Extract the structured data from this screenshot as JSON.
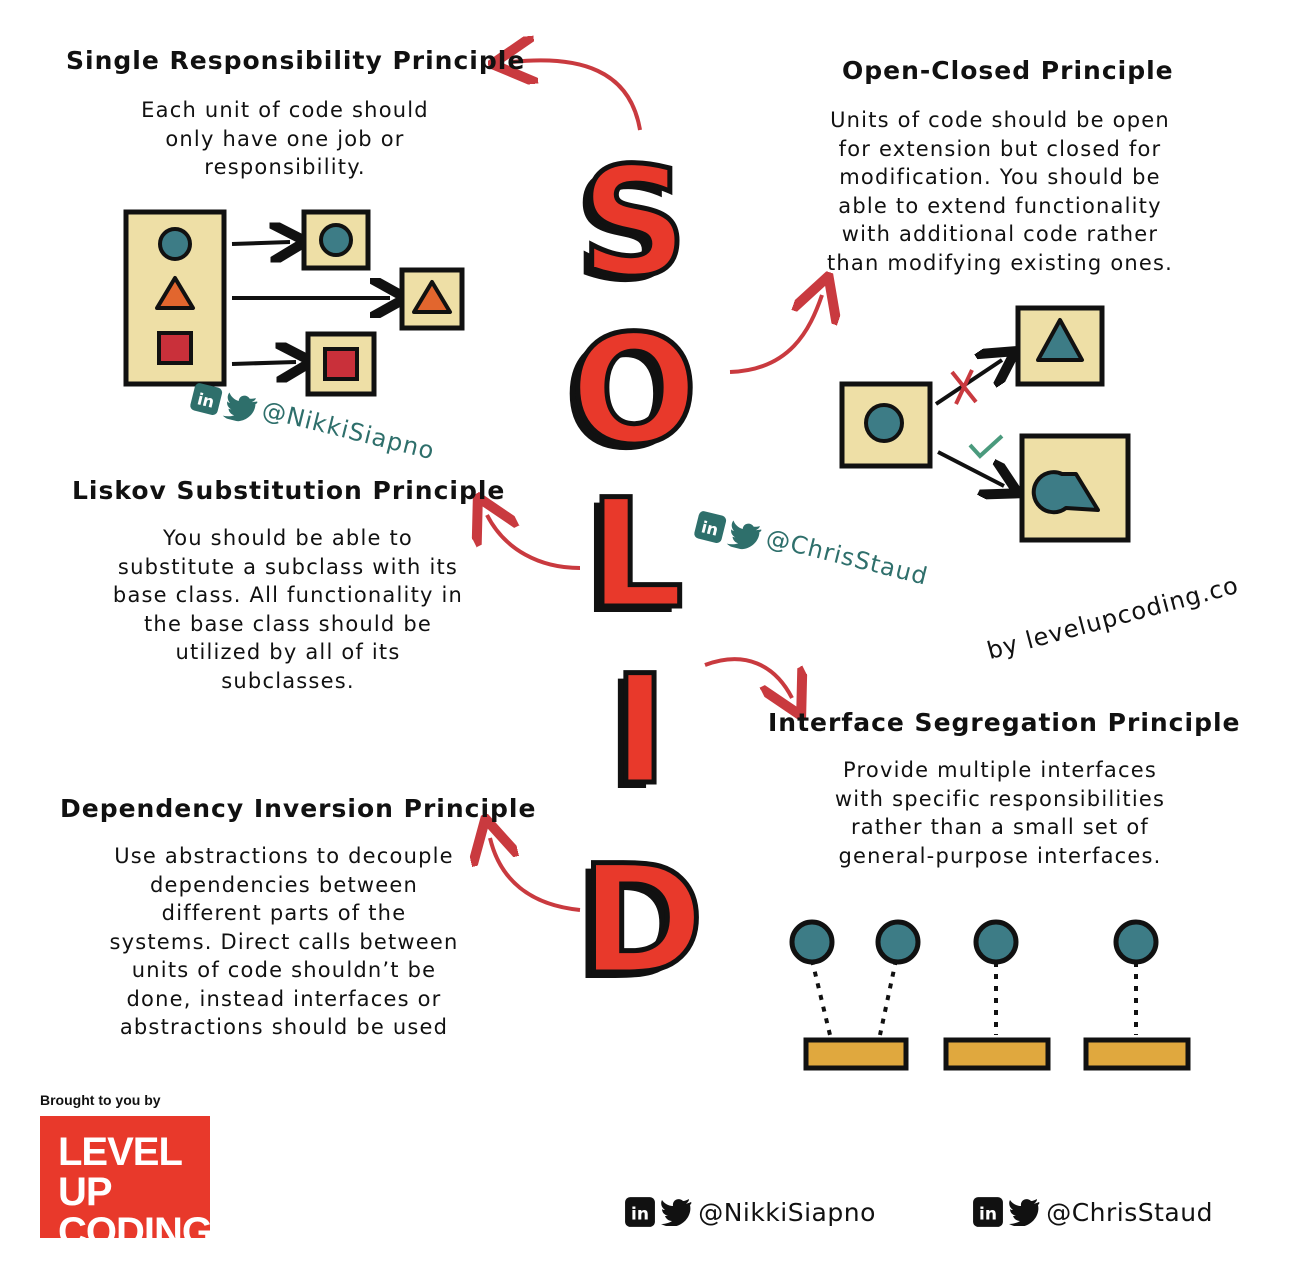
{
  "acronym": {
    "letters": [
      "S",
      "O",
      "L",
      "I",
      "D"
    ],
    "color": "#e8392b"
  },
  "principles": {
    "srp": {
      "title": "Single Responsibility Principle",
      "description": "Each unit of code should\nonly have one job or\nresponsibility."
    },
    "ocp": {
      "title": "Open-Closed Principle",
      "description": "Units of code should be open\nfor extension but closed for\nmodification. You should be\nable to extend functionality\nwith additional code rather\nthan modifying existing ones."
    },
    "lsp": {
      "title": "Liskov Substitution Principle",
      "description": "You should be able to\nsubstitute a subclass with its\nbase class. All functionality in\nthe base class should be\nutilized by all of its\nsubclasses."
    },
    "isp": {
      "title": "Interface Segregation Principle",
      "description": "Provide multiple interfaces\nwith specific responsibilities\nrather than a small set of\ngeneral-purpose interfaces."
    },
    "dip": {
      "title": "Dependency Inversion Principle",
      "description": "Use abstractions to decouple\ndependencies between\ndifferent parts of the\nsystems. Direct calls between\nunits of code shouldn’t be\ndone, instead interfaces or\nabstractions should be used"
    }
  },
  "watermarks": {
    "nikki": "@NikkiSiapno",
    "chris": "@ChrisStaud",
    "site": "by levelupcoding.co"
  },
  "branding": {
    "brought_by": "Brought to you by",
    "logo_text": "LEVEL UP\nCODING",
    "logo_color": "#e8392b"
  },
  "footer": {
    "handle_1": "@NikkiSiapno",
    "handle_2": "@ChrisStaud"
  },
  "colors": {
    "teal": "#3d7c86",
    "orange": "#e2662e",
    "red_square": "#c9303a",
    "box_fill": "#eedfa6",
    "interface_bar": "#e0a83e",
    "arrow_red": "#c93a3f"
  }
}
